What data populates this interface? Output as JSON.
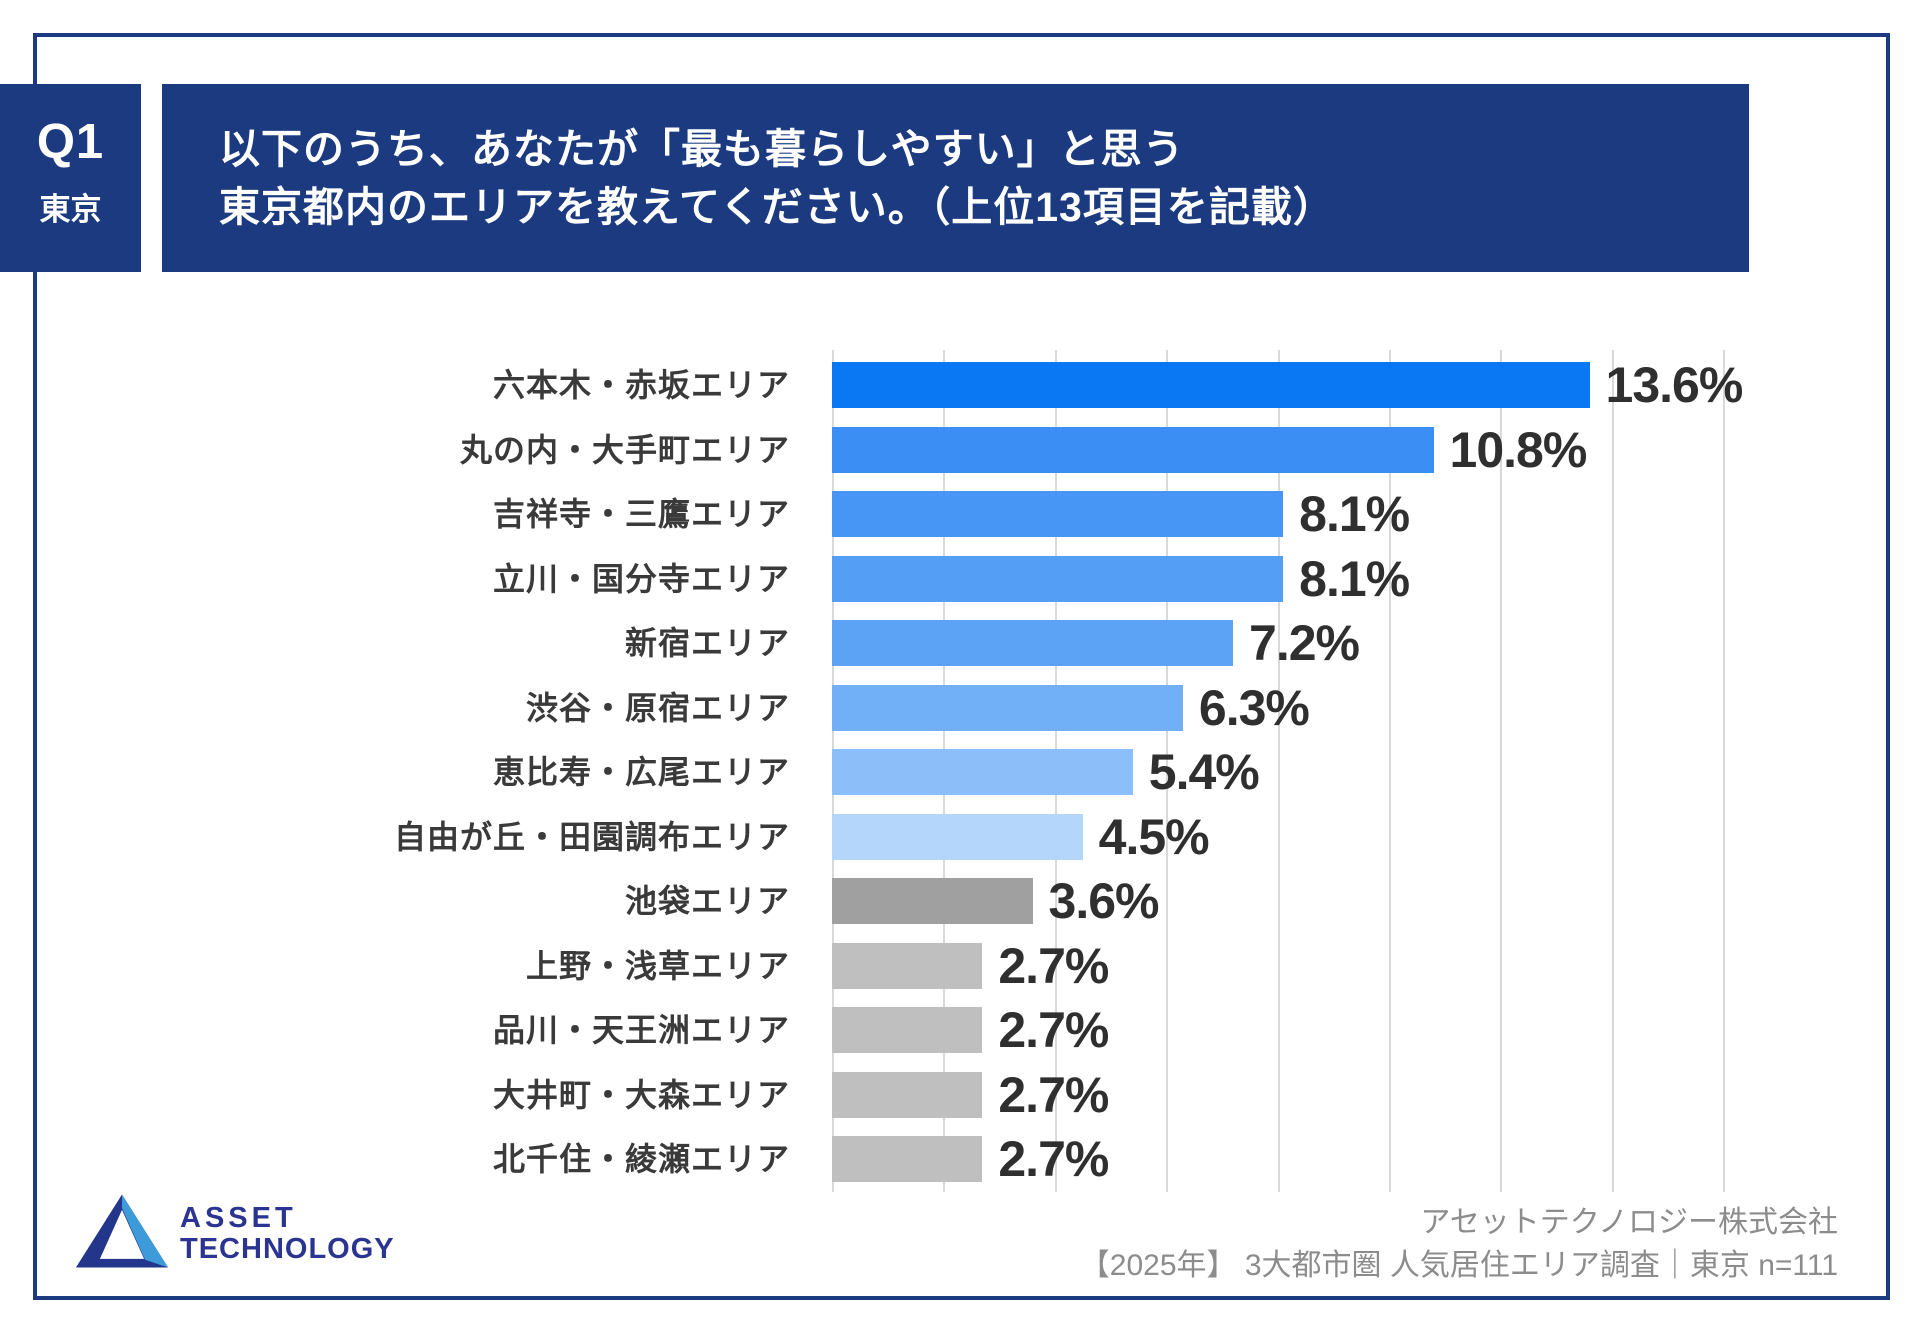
{
  "header": {
    "question_label": "Q1",
    "region_label": "東京",
    "title_line1": "以下のうち、あなたが「最も暮らしやすい」と思う",
    "title_line2": "東京都内のエリアを教えてください。（上位13項目を記載）"
  },
  "chart_data": {
    "type": "bar",
    "orientation": "horizontal",
    "title": "",
    "xlabel": "",
    "ylabel": "",
    "xlim": [
      0,
      16
    ],
    "grid": true,
    "gridline_interval_pct": 2,
    "categories": [
      "六本木・赤坂エリア",
      "丸の内・大手町エリア",
      "吉祥寺・三鷹エリア",
      "立川・国分寺エリア",
      "新宿エリア",
      "渋谷・原宿エリア",
      "恵比寿・広尾エリア",
      "自由が丘・田園調布エリア",
      "池袋エリア",
      "上野・浅草エリア",
      "品川・天王洲エリア",
      "大井町・大森エリア",
      "北千住・綾瀬エリア"
    ],
    "values": [
      13.6,
      10.8,
      8.1,
      8.1,
      7.2,
      6.3,
      5.4,
      4.5,
      3.6,
      2.7,
      2.7,
      2.7,
      2.7
    ],
    "value_labels": [
      "13.6%",
      "10.8%",
      "8.1%",
      "8.1%",
      "7.2%",
      "6.3%",
      "5.4%",
      "4.5%",
      "3.6%",
      "2.7%",
      "2.7%",
      "2.7%",
      "2.7%"
    ],
    "bar_colors": [
      "#0A78F3",
      "#3B8FF4",
      "#4796F5",
      "#549EF6",
      "#5CA3F6",
      "#71AFF7",
      "#8CBEF9",
      "#B5D6FB",
      "#A0A0A0",
      "#BFBFBF",
      "#BFBFBF",
      "#BFBFBF",
      "#BFBFBF"
    ],
    "gridline_color": "#D9D9D9"
  },
  "footer": {
    "logo_line1": "ASSET",
    "logo_line2": "TECHNOLOGY",
    "source_line1": "アセットテクノロジー株式会社",
    "source_line2": "【2025年】 3大都市圏 人気居住エリア調査｜東京 n=111"
  },
  "colors": {
    "header_navy": "#1B3A80",
    "frame_border": "#1B3A80",
    "logo_navy": "#2B3490",
    "logo_accent_blue": "#3C9BD8",
    "category_label": "#3A3A3A",
    "value_label": "#2F2F2F",
    "source_text": "#8C8C8C"
  }
}
